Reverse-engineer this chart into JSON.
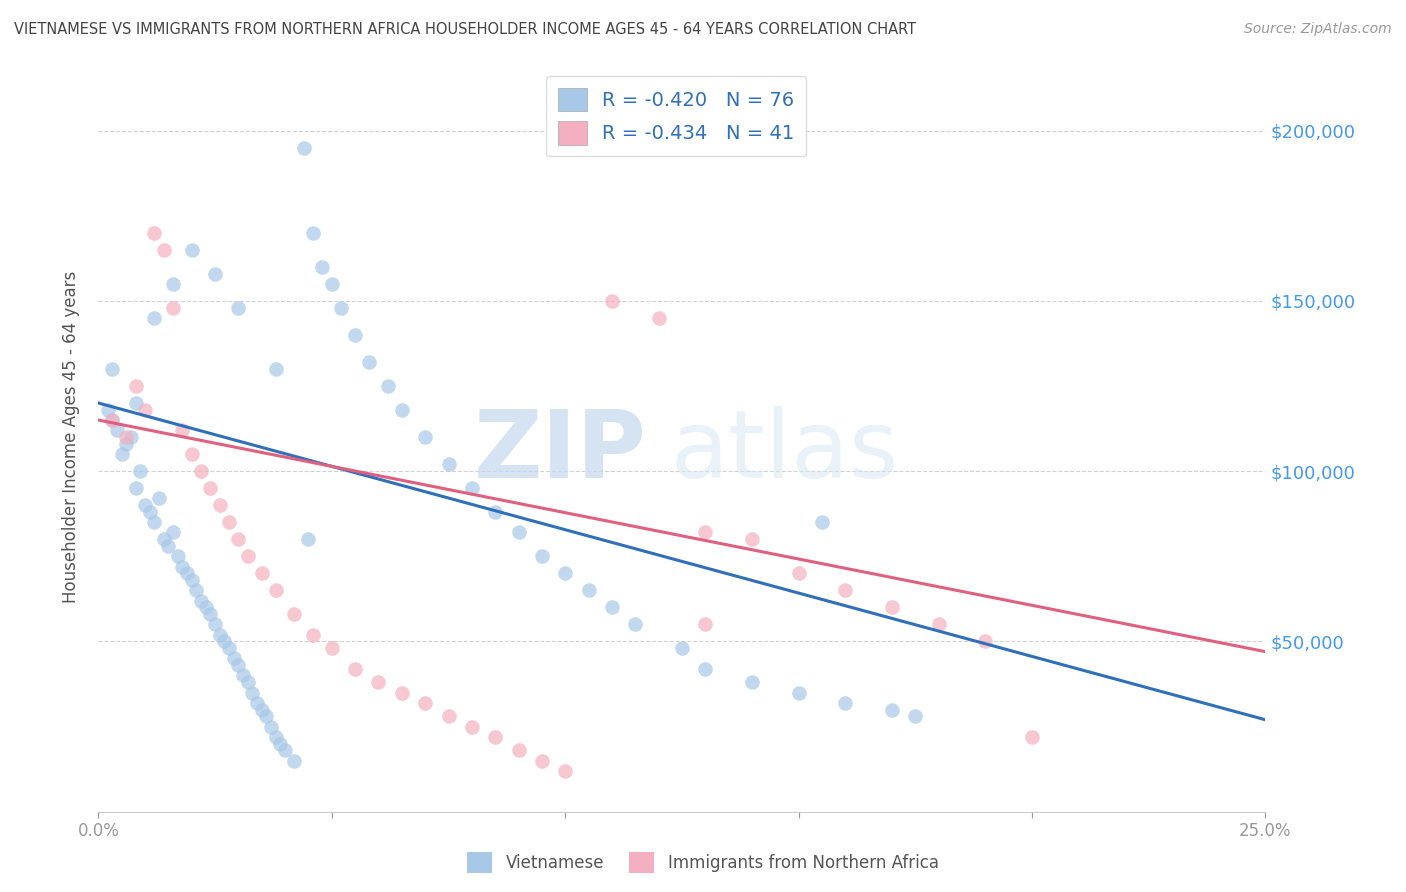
{
  "title": "VIETNAMESE VS IMMIGRANTS FROM NORTHERN AFRICA HOUSEHOLDER INCOME AGES 45 - 64 YEARS CORRELATION CHART",
  "source": "Source: ZipAtlas.com",
  "ylabel": "Householder Income Ages 45 - 64 years",
  "xlim": [
    0.0,
    0.25
  ],
  "ylim": [
    0,
    220000
  ],
  "yticks": [
    50000,
    100000,
    150000,
    200000
  ],
  "ytick_labels": [
    "$50,000",
    "$100,000",
    "$150,000",
    "$200,000"
  ],
  "watermark_zip": "ZIP",
  "watermark_atlas": "atlas",
  "legend_r1": "-0.420",
  "legend_n1": "76",
  "legend_r2": "-0.434",
  "legend_n2": "41",
  "blue_color": "#a8c8e8",
  "blue_line_color": "#3070b8",
  "pink_color": "#f4b0c0",
  "pink_line_color": "#e06080",
  "title_color": "#444444",
  "right_tick_color": "#4499ee",
  "scatter_alpha": 0.7,
  "scatter_size": 110,
  "viet_line_x0": 0.0,
  "viet_line_y0": 120000,
  "viet_line_x1": 0.25,
  "viet_line_y1": 27000,
  "na_line_x0": 0.0,
  "na_line_y0": 115000,
  "na_line_x1": 0.25,
  "na_line_y1": 47000,
  "vietnamese_x": [
    0.002,
    0.003,
    0.004,
    0.005,
    0.006,
    0.007,
    0.008,
    0.009,
    0.01,
    0.011,
    0.012,
    0.013,
    0.014,
    0.015,
    0.016,
    0.017,
    0.018,
    0.019,
    0.02,
    0.021,
    0.022,
    0.023,
    0.024,
    0.025,
    0.026,
    0.027,
    0.028,
    0.029,
    0.03,
    0.031,
    0.032,
    0.033,
    0.034,
    0.035,
    0.036,
    0.037,
    0.038,
    0.039,
    0.04,
    0.042,
    0.044,
    0.046,
    0.048,
    0.05,
    0.052,
    0.055,
    0.058,
    0.062,
    0.065,
    0.07,
    0.075,
    0.08,
    0.085,
    0.09,
    0.095,
    0.1,
    0.105,
    0.11,
    0.115,
    0.125,
    0.13,
    0.14,
    0.15,
    0.16,
    0.17,
    0.175,
    0.003,
    0.008,
    0.012,
    0.016,
    0.02,
    0.025,
    0.03,
    0.038,
    0.045,
    0.155
  ],
  "vietnamese_y": [
    118000,
    115000,
    112000,
    105000,
    108000,
    110000,
    95000,
    100000,
    90000,
    88000,
    85000,
    92000,
    80000,
    78000,
    82000,
    75000,
    72000,
    70000,
    68000,
    65000,
    62000,
    60000,
    58000,
    55000,
    52000,
    50000,
    48000,
    45000,
    43000,
    40000,
    38000,
    35000,
    32000,
    30000,
    28000,
    25000,
    22000,
    20000,
    18000,
    15000,
    195000,
    170000,
    160000,
    155000,
    148000,
    140000,
    132000,
    125000,
    118000,
    110000,
    102000,
    95000,
    88000,
    82000,
    75000,
    70000,
    65000,
    60000,
    55000,
    48000,
    42000,
    38000,
    35000,
    32000,
    30000,
    28000,
    130000,
    120000,
    145000,
    155000,
    165000,
    158000,
    148000,
    130000,
    80000,
    85000
  ],
  "na_x": [
    0.003,
    0.006,
    0.008,
    0.01,
    0.012,
    0.014,
    0.016,
    0.018,
    0.02,
    0.022,
    0.024,
    0.026,
    0.028,
    0.03,
    0.032,
    0.035,
    0.038,
    0.042,
    0.046,
    0.05,
    0.055,
    0.06,
    0.065,
    0.07,
    0.075,
    0.08,
    0.085,
    0.09,
    0.095,
    0.1,
    0.11,
    0.12,
    0.13,
    0.14,
    0.15,
    0.16,
    0.17,
    0.18,
    0.19,
    0.2,
    0.13
  ],
  "na_y": [
    115000,
    110000,
    125000,
    118000,
    170000,
    165000,
    148000,
    112000,
    105000,
    100000,
    95000,
    90000,
    85000,
    80000,
    75000,
    70000,
    65000,
    58000,
    52000,
    48000,
    42000,
    38000,
    35000,
    32000,
    28000,
    25000,
    22000,
    18000,
    15000,
    12000,
    150000,
    145000,
    82000,
    80000,
    70000,
    65000,
    60000,
    55000,
    50000,
    22000,
    55000
  ]
}
